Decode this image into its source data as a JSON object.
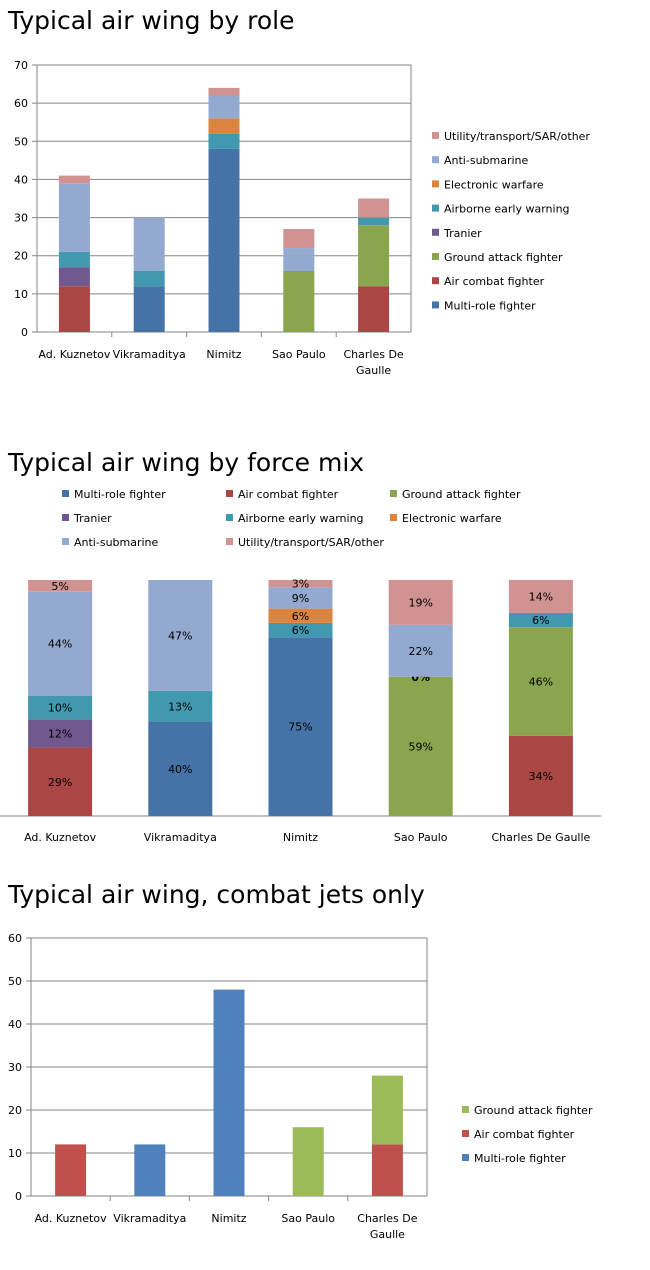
{
  "chart_data": [
    {
      "type": "bar",
      "stacked": true,
      "title": "Typical air wing by role",
      "categories": [
        "Ad. Kuznetov",
        "Vikramaditya",
        "Nimitz",
        "Sao Paulo",
        "Charles De Gaulle"
      ],
      "ylim": [
        0,
        70
      ],
      "yticks": [
        0,
        10,
        20,
        30,
        40,
        50,
        60,
        70
      ],
      "grid": true,
      "legend_position": "right",
      "series": [
        {
          "name": "Multi-role fighter",
          "color": "#4572A7",
          "values": [
            0,
            12,
            48,
            0,
            0
          ]
        },
        {
          "name": "Air combat fighter",
          "color": "#AA4643",
          "values": [
            12,
            0,
            0,
            0,
            12
          ]
        },
        {
          "name": "Ground attack fighter",
          "color": "#89A54E",
          "values": [
            0,
            0,
            0,
            16,
            16
          ]
        },
        {
          "name": "Tranier",
          "color": "#71588F",
          "values": [
            5,
            0,
            0,
            0,
            0
          ]
        },
        {
          "name": "Airborne early warning",
          "color": "#4198AF",
          "values": [
            4,
            4,
            4,
            0,
            2
          ]
        },
        {
          "name": "Electronic warfare",
          "color": "#DB843D",
          "values": [
            0,
            0,
            4,
            0,
            0
          ]
        },
        {
          "name": "Anti-submarine",
          "color": "#93A9CF",
          "values": [
            18,
            14,
            6,
            6,
            0
          ]
        },
        {
          "name": "Utility/transport/SAR/other",
          "color": "#D19392",
          "values": [
            2,
            0,
            2,
            5,
            5
          ]
        }
      ]
    },
    {
      "type": "bar",
      "stacked": true,
      "percent": true,
      "title": "Typical air wing by force mix",
      "categories": [
        "Ad. Kuznetov",
        "Vikramaditya",
        "Nimitz",
        "Sao Paulo",
        "Charles De Gaulle"
      ],
      "grid": false,
      "legend_position": "top",
      "series": [
        {
          "name": "Multi-role fighter",
          "color": "#4572A7",
          "values": [
            0,
            40,
            75,
            0,
            0
          ],
          "labels": [
            null,
            "40%",
            "75%",
            null,
            null
          ]
        },
        {
          "name": "Air combat fighter",
          "color": "#AA4643",
          "values": [
            29,
            0,
            0,
            0,
            34
          ],
          "labels": [
            "29%",
            null,
            null,
            null,
            "34%"
          ]
        },
        {
          "name": "Ground attack fighter",
          "color": "#89A54E",
          "values": [
            0,
            0,
            0,
            59,
            46
          ],
          "labels": [
            null,
            null,
            null,
            "59%",
            "46%"
          ]
        },
        {
          "name": "Tranier",
          "color": "#71588F",
          "values": [
            12,
            0,
            0,
            0,
            0
          ],
          "labels": [
            "12%",
            null,
            null,
            null,
            null
          ]
        },
        {
          "name": "Airborne early warning",
          "color": "#4198AF",
          "values": [
            10,
            13,
            6,
            0,
            6
          ],
          "labels": [
            "10%",
            "13%",
            "6%",
            "0%",
            "6%"
          ]
        },
        {
          "name": "Electronic warfare",
          "color": "#DB843D",
          "values": [
            0,
            0,
            6,
            0,
            0
          ],
          "labels": [
            null,
            null,
            "6%",
            null,
            null
          ]
        },
        {
          "name": "Anti-submarine",
          "color": "#93A9CF",
          "values": [
            44,
            47,
            9,
            22,
            0
          ],
          "labels": [
            "44%",
            "47%",
            "9%",
            "22%",
            null
          ]
        },
        {
          "name": "Utility/transport/SAR/other",
          "color": "#D19392",
          "values": [
            5,
            0,
            3,
            19,
            14
          ],
          "labels": [
            "5%",
            null,
            "3%",
            "19%",
            "14%"
          ]
        }
      ]
    },
    {
      "type": "bar",
      "stacked": true,
      "title": "Typical air wing, combat jets only",
      "categories": [
        "Ad. Kuznetov",
        "Vikramaditya",
        "Nimitz",
        "Sao Paulo",
        "Charles De Gaulle"
      ],
      "ylim": [
        0,
        60
      ],
      "yticks": [
        0,
        10,
        20,
        30,
        40,
        50,
        60
      ],
      "grid": true,
      "legend_position": "right",
      "series": [
        {
          "name": "Multi-role fighter",
          "color": "#4F81BD",
          "values": [
            0,
            12,
            48,
            0,
            0
          ]
        },
        {
          "name": "Air combat fighter",
          "color": "#C0504D",
          "values": [
            12,
            0,
            0,
            0,
            12
          ]
        },
        {
          "name": "Ground attack fighter",
          "color": "#9BBB59",
          "values": [
            0,
            0,
            0,
            16,
            16
          ]
        }
      ]
    }
  ]
}
